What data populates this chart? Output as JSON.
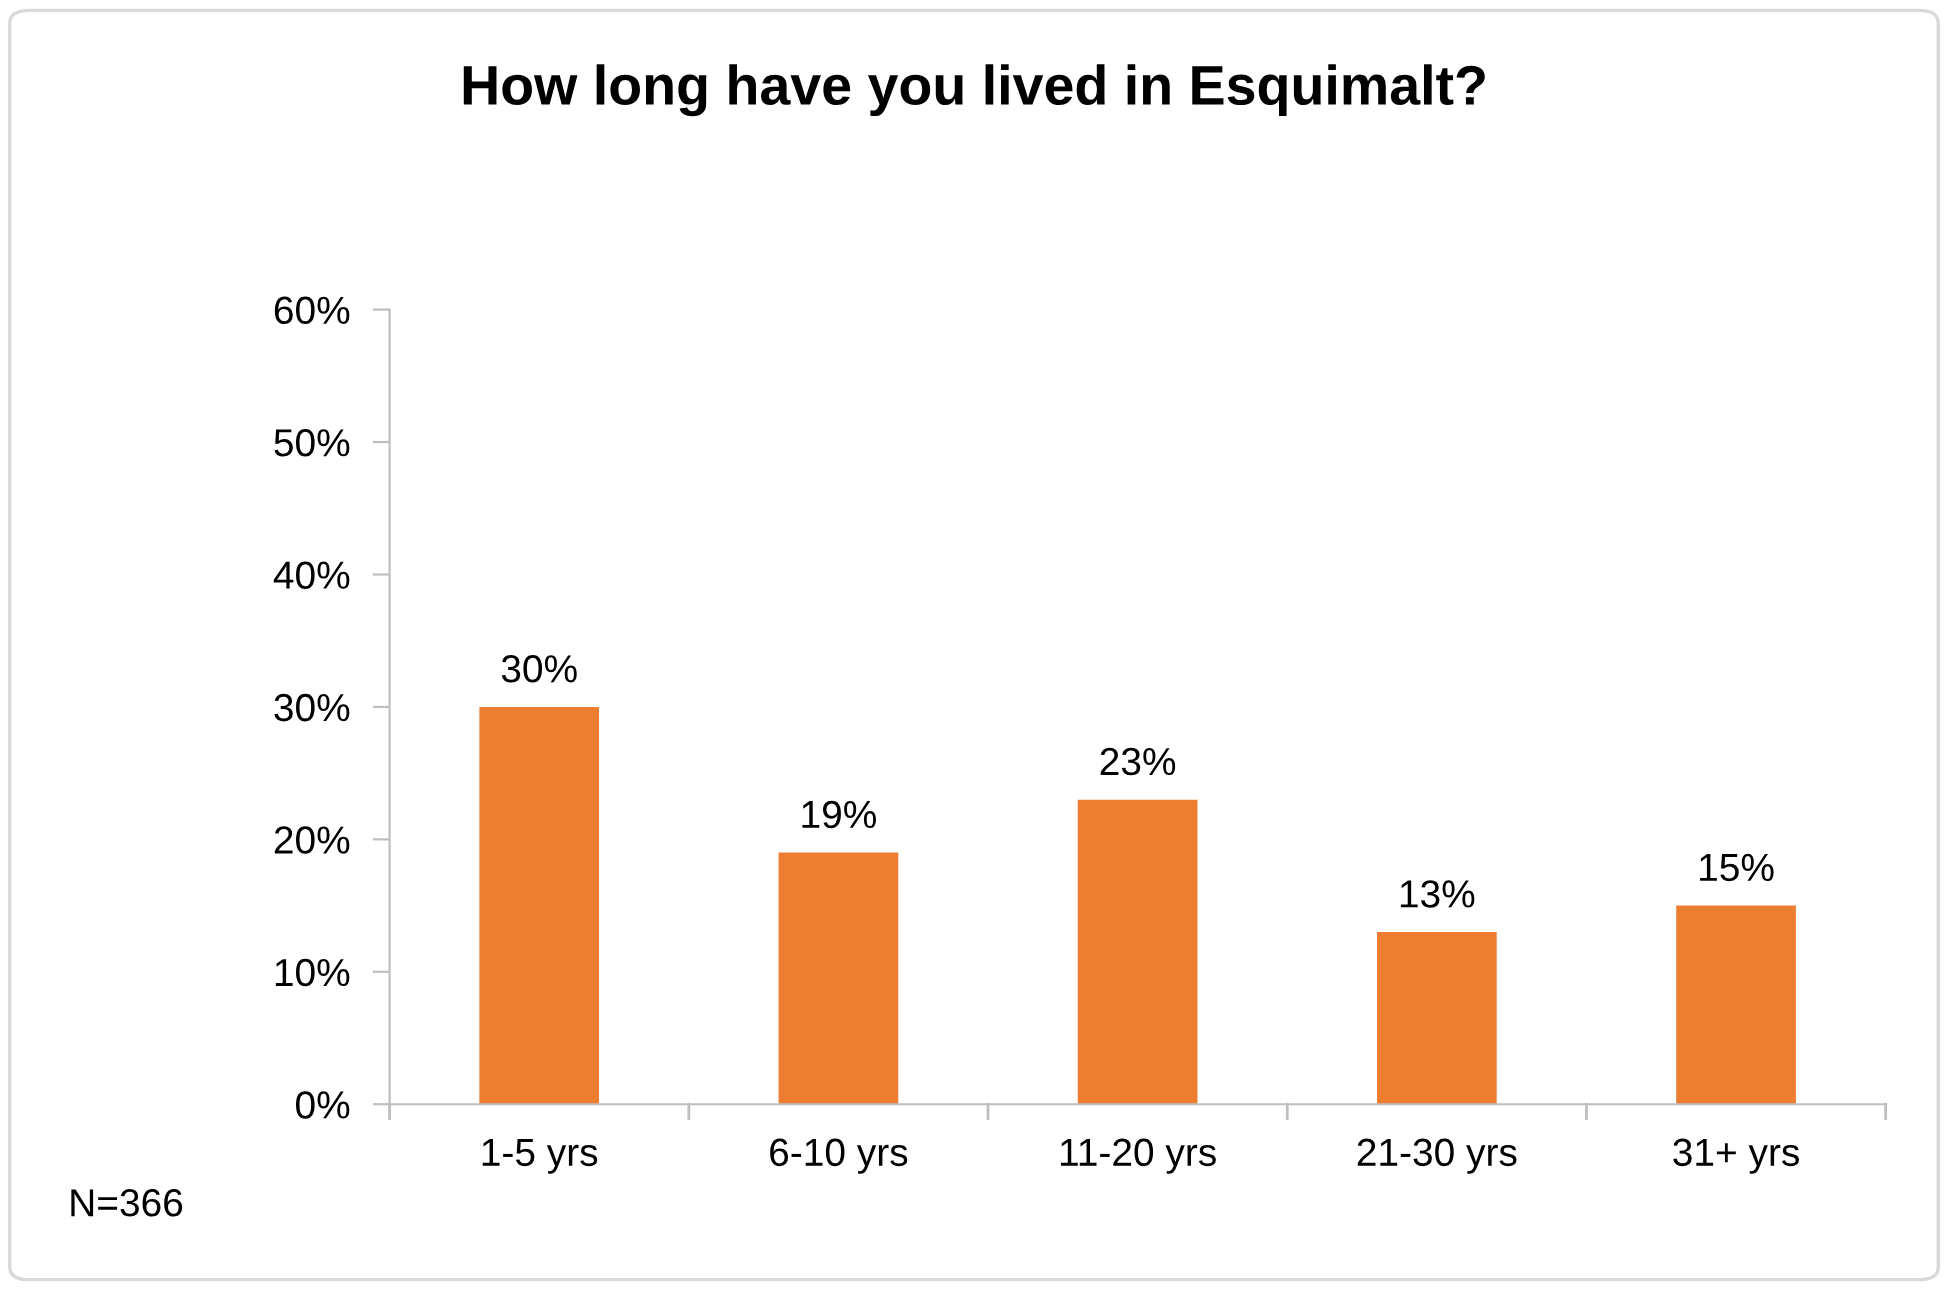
{
  "chart_data": {
    "type": "bar",
    "title": "How long have you lived in Esquimalt?",
    "categories": [
      "1-5 yrs",
      "6-10 yrs",
      "11-20 yrs",
      "21-30 yrs",
      "31+ yrs"
    ],
    "values": [
      30,
      19,
      23,
      13,
      15
    ],
    "color": "#ed7d31",
    "value_labels": [
      "30%",
      "19%",
      "23%",
      "13%",
      "15%"
    ],
    "ylim": [
      0,
      60
    ],
    "yticks": [
      {
        "value": 0,
        "label": "0%"
      },
      {
        "value": 10,
        "label": "10%"
      },
      {
        "value": 20,
        "label": "20%"
      },
      {
        "value": 30,
        "label": "30%"
      },
      {
        "value": 40,
        "label": "40%"
      },
      {
        "value": 50,
        "label": "50%"
      },
      {
        "value": 60,
        "label": "60%"
      }
    ],
    "grid": false,
    "legend": false,
    "annotations": [
      "N=366"
    ]
  }
}
